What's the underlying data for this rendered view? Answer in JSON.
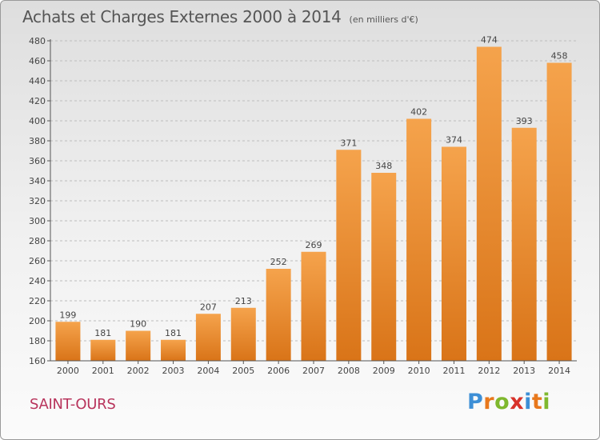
{
  "title": "Achats et Charges Externes 2000 à 2014",
  "subtitle": "(en milliers d'€)",
  "commune": "SAINT-OURS",
  "logo_text": "Proxiti",
  "colors": {
    "bar_light": "#f5a34c",
    "bar_dark": "#d97418",
    "commune": "#b8345c",
    "logo": [
      "#3d8fd6",
      "#e8781c",
      "#7fb82e",
      "#d8322a",
      "#3d8fd6",
      "#e8781c",
      "#7fb82e"
    ]
  },
  "chart_data": {
    "type": "bar",
    "title": "Achats et Charges Externes 2000 à 2014",
    "subtitle": "(en milliers d'€)",
    "categories": [
      "2000",
      "2001",
      "2002",
      "2003",
      "2004",
      "2005",
      "2006",
      "2007",
      "2008",
      "2009",
      "2010",
      "2011",
      "2012",
      "2013",
      "2014"
    ],
    "values": [
      199,
      181,
      190,
      181,
      207,
      213,
      252,
      269,
      371,
      348,
      402,
      374,
      474,
      393,
      458
    ],
    "ylim": [
      160,
      480
    ],
    "yticks": [
      160,
      180,
      200,
      220,
      240,
      260,
      280,
      300,
      320,
      340,
      360,
      380,
      400,
      420,
      440,
      460,
      480
    ],
    "grid": "horizontal dashed",
    "data_labels": true
  }
}
